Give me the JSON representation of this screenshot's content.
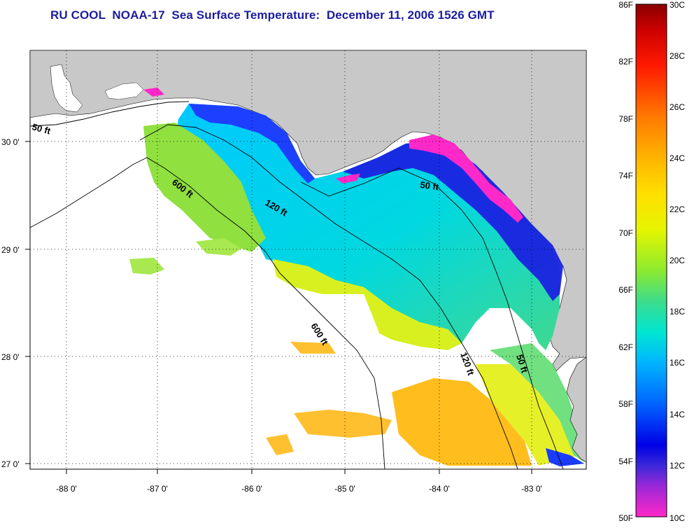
{
  "title": "RU COOL  NOAA-17  Sea Surface Temperature:  December 11, 2006 1526 GMT",
  "map": {
    "lat_labels": [
      "30 0'",
      "29 0'",
      "28 0'",
      "27 0'"
    ],
    "lat_values": [
      30,
      29,
      28,
      27
    ],
    "lon_labels": [
      "-88 0'",
      "-87 0'",
      "-86 0'",
      "-85 0'",
      "-84 0'",
      "-83 0'"
    ],
    "lon_values": [
      -88,
      -87,
      -86,
      -85,
      -84,
      -83
    ],
    "lon_range": [
      -88.3,
      -82.5
    ],
    "lat_range": [
      26.95,
      30.85
    ],
    "contour_labels": [
      {
        "text": "50 ft",
        "rotate": 15
      },
      {
        "text": "600 ft",
        "rotate": 38
      },
      {
        "text": "120 ft",
        "rotate": 30
      },
      {
        "text": "50 ft",
        "rotate": 8
      },
      {
        "text": "600 ft",
        "rotate": 58
      },
      {
        "text": "120 ft",
        "rotate": 70
      },
      {
        "text": "50 ft",
        "rotate": 72
      }
    ]
  },
  "colorbar": {
    "f_labels": [
      "86F",
      "82F",
      "78F",
      "74F",
      "70F",
      "66F",
      "62F",
      "58F",
      "54F",
      "50F"
    ],
    "c_labels": [
      "30C",
      "28C",
      "26C",
      "24C",
      "22C",
      "20C",
      "18C",
      "16C",
      "14C",
      "12C",
      "10C"
    ]
  },
  "colors": {
    "title": "#1c1ca0",
    "land": "#c8c8c8",
    "ocean_nodata": "#ffffff"
  }
}
